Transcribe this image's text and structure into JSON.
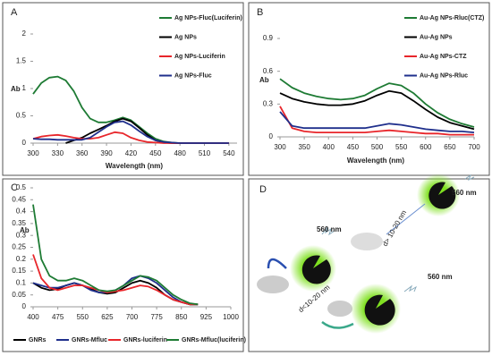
{
  "chart_data": [
    {
      "type": "line",
      "label": "A",
      "xlabel": "Wavelength (nm)",
      "ylabel": "Ab",
      "x": [
        300,
        310,
        320,
        330,
        340,
        350,
        360,
        370,
        380,
        390,
        400,
        410,
        420,
        430,
        440,
        450,
        460,
        470,
        480,
        490,
        500,
        510,
        520,
        530,
        540
      ],
      "xlim": [
        300,
        550
      ],
      "xticks": [
        300,
        330,
        360,
        390,
        420,
        450,
        480,
        510,
        540
      ],
      "ylim": [
        0,
        2
      ],
      "yticks": [
        0,
        0.5,
        1,
        1.5,
        2
      ],
      "series": [
        {
          "name": "Ag NPs-Fluc(Luciferin)",
          "color": "#1e7b34",
          "values": [
            0.9,
            1.1,
            1.2,
            1.22,
            1.15,
            0.95,
            0.65,
            0.45,
            0.38,
            0.38,
            0.42,
            0.47,
            0.42,
            0.3,
            0.18,
            0.08,
            0.03,
            0.01,
            0,
            0,
            0,
            0,
            0,
            0,
            0
          ]
        },
        {
          "name": "Ag NPs",
          "color": "#000000",
          "values": [
            null,
            null,
            null,
            null,
            0,
            0.05,
            0.1,
            0.18,
            0.25,
            0.32,
            0.4,
            0.45,
            0.4,
            0.28,
            0.15,
            0.05,
            0.01,
            0,
            0,
            0,
            0,
            0,
            0,
            0,
            0
          ]
        },
        {
          "name": "Ag NPs-Luciferin",
          "color": "#e8262b",
          "values": [
            0.08,
            0.12,
            0.14,
            0.15,
            0.13,
            0.1,
            0.08,
            0.08,
            0.1,
            0.15,
            0.2,
            0.18,
            0.1,
            0.05,
            0.02,
            0.01,
            0,
            0,
            0,
            0,
            0,
            0,
            0,
            0,
            0
          ]
        },
        {
          "name": "Ag NPs-Fluc",
          "color": "#1f2f8c",
          "values": [
            0.08,
            0.07,
            0.07,
            0.06,
            0.06,
            0.06,
            0.06,
            0.1,
            0.2,
            0.3,
            0.38,
            0.4,
            0.33,
            0.22,
            0.12,
            0.05,
            0.02,
            0.01,
            0,
            0,
            0,
            0,
            0,
            0,
            0
          ]
        }
      ]
    },
    {
      "type": "line",
      "label": "B",
      "xlabel": "Wavelength (nm)",
      "ylabel": "Ab",
      "x": [
        300,
        325,
        350,
        375,
        400,
        425,
        450,
        475,
        500,
        525,
        550,
        575,
        600,
        625,
        650,
        675,
        700
      ],
      "xlim": [
        300,
        700
      ],
      "xticks": [
        300,
        350,
        400,
        450,
        500,
        550,
        600,
        650,
        700
      ],
      "ylim": [
        0,
        0.9
      ],
      "yticks": [
        0,
        0.3,
        0.6,
        0.9
      ],
      "series": [
        {
          "name": "Au-Ag NPs-Rluc(CTZ)",
          "color": "#1e7b34",
          "values": [
            0.53,
            0.45,
            0.4,
            0.37,
            0.35,
            0.34,
            0.35,
            0.38,
            0.44,
            0.49,
            0.47,
            0.4,
            0.3,
            0.22,
            0.16,
            0.12,
            0.09
          ]
        },
        {
          "name": "Au-Ag NPs",
          "color": "#000000",
          "values": [
            0.4,
            0.35,
            0.32,
            0.3,
            0.29,
            0.29,
            0.3,
            0.33,
            0.38,
            0.42,
            0.4,
            0.33,
            0.25,
            0.18,
            0.13,
            0.1,
            0.07
          ]
        },
        {
          "name": "Au-Ag NPs-CTZ",
          "color": "#e8262b",
          "values": [
            0.28,
            0.08,
            0.05,
            0.04,
            0.04,
            0.04,
            0.04,
            0.04,
            0.05,
            0.06,
            0.05,
            0.04,
            0.03,
            0.03,
            0.02,
            0.02,
            0.02
          ]
        },
        {
          "name": "Au-Ag NPs-Rluc",
          "color": "#1f2f8c",
          "values": [
            0.23,
            0.1,
            0.08,
            0.08,
            0.08,
            0.08,
            0.08,
            0.08,
            0.1,
            0.12,
            0.11,
            0.09,
            0.07,
            0.06,
            0.05,
            0.05,
            0.04
          ]
        }
      ]
    },
    {
      "type": "line",
      "label": "C",
      "ylabel": "Ab",
      "x": [
        400,
        425,
        450,
        475,
        500,
        525,
        550,
        575,
        600,
        625,
        650,
        675,
        700,
        725,
        750,
        775,
        800,
        825,
        850,
        875,
        900
      ],
      "xlim": [
        400,
        1000
      ],
      "xticks": [
        400,
        475,
        550,
        625,
        700,
        775,
        850,
        925,
        1000
      ],
      "ylim": [
        0,
        0.5
      ],
      "yticks": [
        0,
        0.05,
        0.1,
        0.15,
        0.2,
        0.25,
        0.3,
        0.35,
        0.4,
        0.45,
        0.5
      ],
      "series": [
        {
          "name": "GNRs",
          "color": "#000000",
          "values": [
            0.1,
            0.08,
            0.07,
            0.075,
            0.09,
            0.1,
            0.09,
            0.075,
            0.06,
            0.055,
            0.06,
            0.08,
            0.1,
            0.11,
            0.1,
            0.08,
            0.05,
            0.03,
            0.02,
            0.01,
            0.01
          ]
        },
        {
          "name": "GNRs-Mfluc",
          "color": "#1f2f8c",
          "values": [
            0.1,
            0.09,
            0.08,
            0.08,
            0.09,
            0.1,
            0.09,
            0.07,
            0.06,
            0.06,
            0.07,
            0.09,
            0.12,
            0.13,
            0.12,
            0.1,
            0.07,
            0.04,
            0.02,
            0.01,
            0.01
          ]
        },
        {
          "name": "GNRs-luciferin",
          "color": "#e8262b",
          "values": [
            0.22,
            0.12,
            0.08,
            0.07,
            0.08,
            0.09,
            0.09,
            0.08,
            0.07,
            0.06,
            0.065,
            0.07,
            0.08,
            0.09,
            0.085,
            0.07,
            0.05,
            0.03,
            0.02,
            0.01,
            0.01
          ]
        },
        {
          "name": "GNRs-Mfluc(luciferin)",
          "color": "#1e7b34",
          "values": [
            0.43,
            0.2,
            0.13,
            0.11,
            0.11,
            0.12,
            0.11,
            0.09,
            0.07,
            0.065,
            0.07,
            0.09,
            0.11,
            0.13,
            0.125,
            0.11,
            0.08,
            0.05,
            0.03,
            0.015,
            0.01
          ]
        }
      ]
    }
  ],
  "diagram": {
    "label": "D",
    "texts": [
      "560 nm",
      "560 nm",
      "560 nm",
      "d<10-20 nm",
      "d> 10-20 nm"
    ]
  }
}
